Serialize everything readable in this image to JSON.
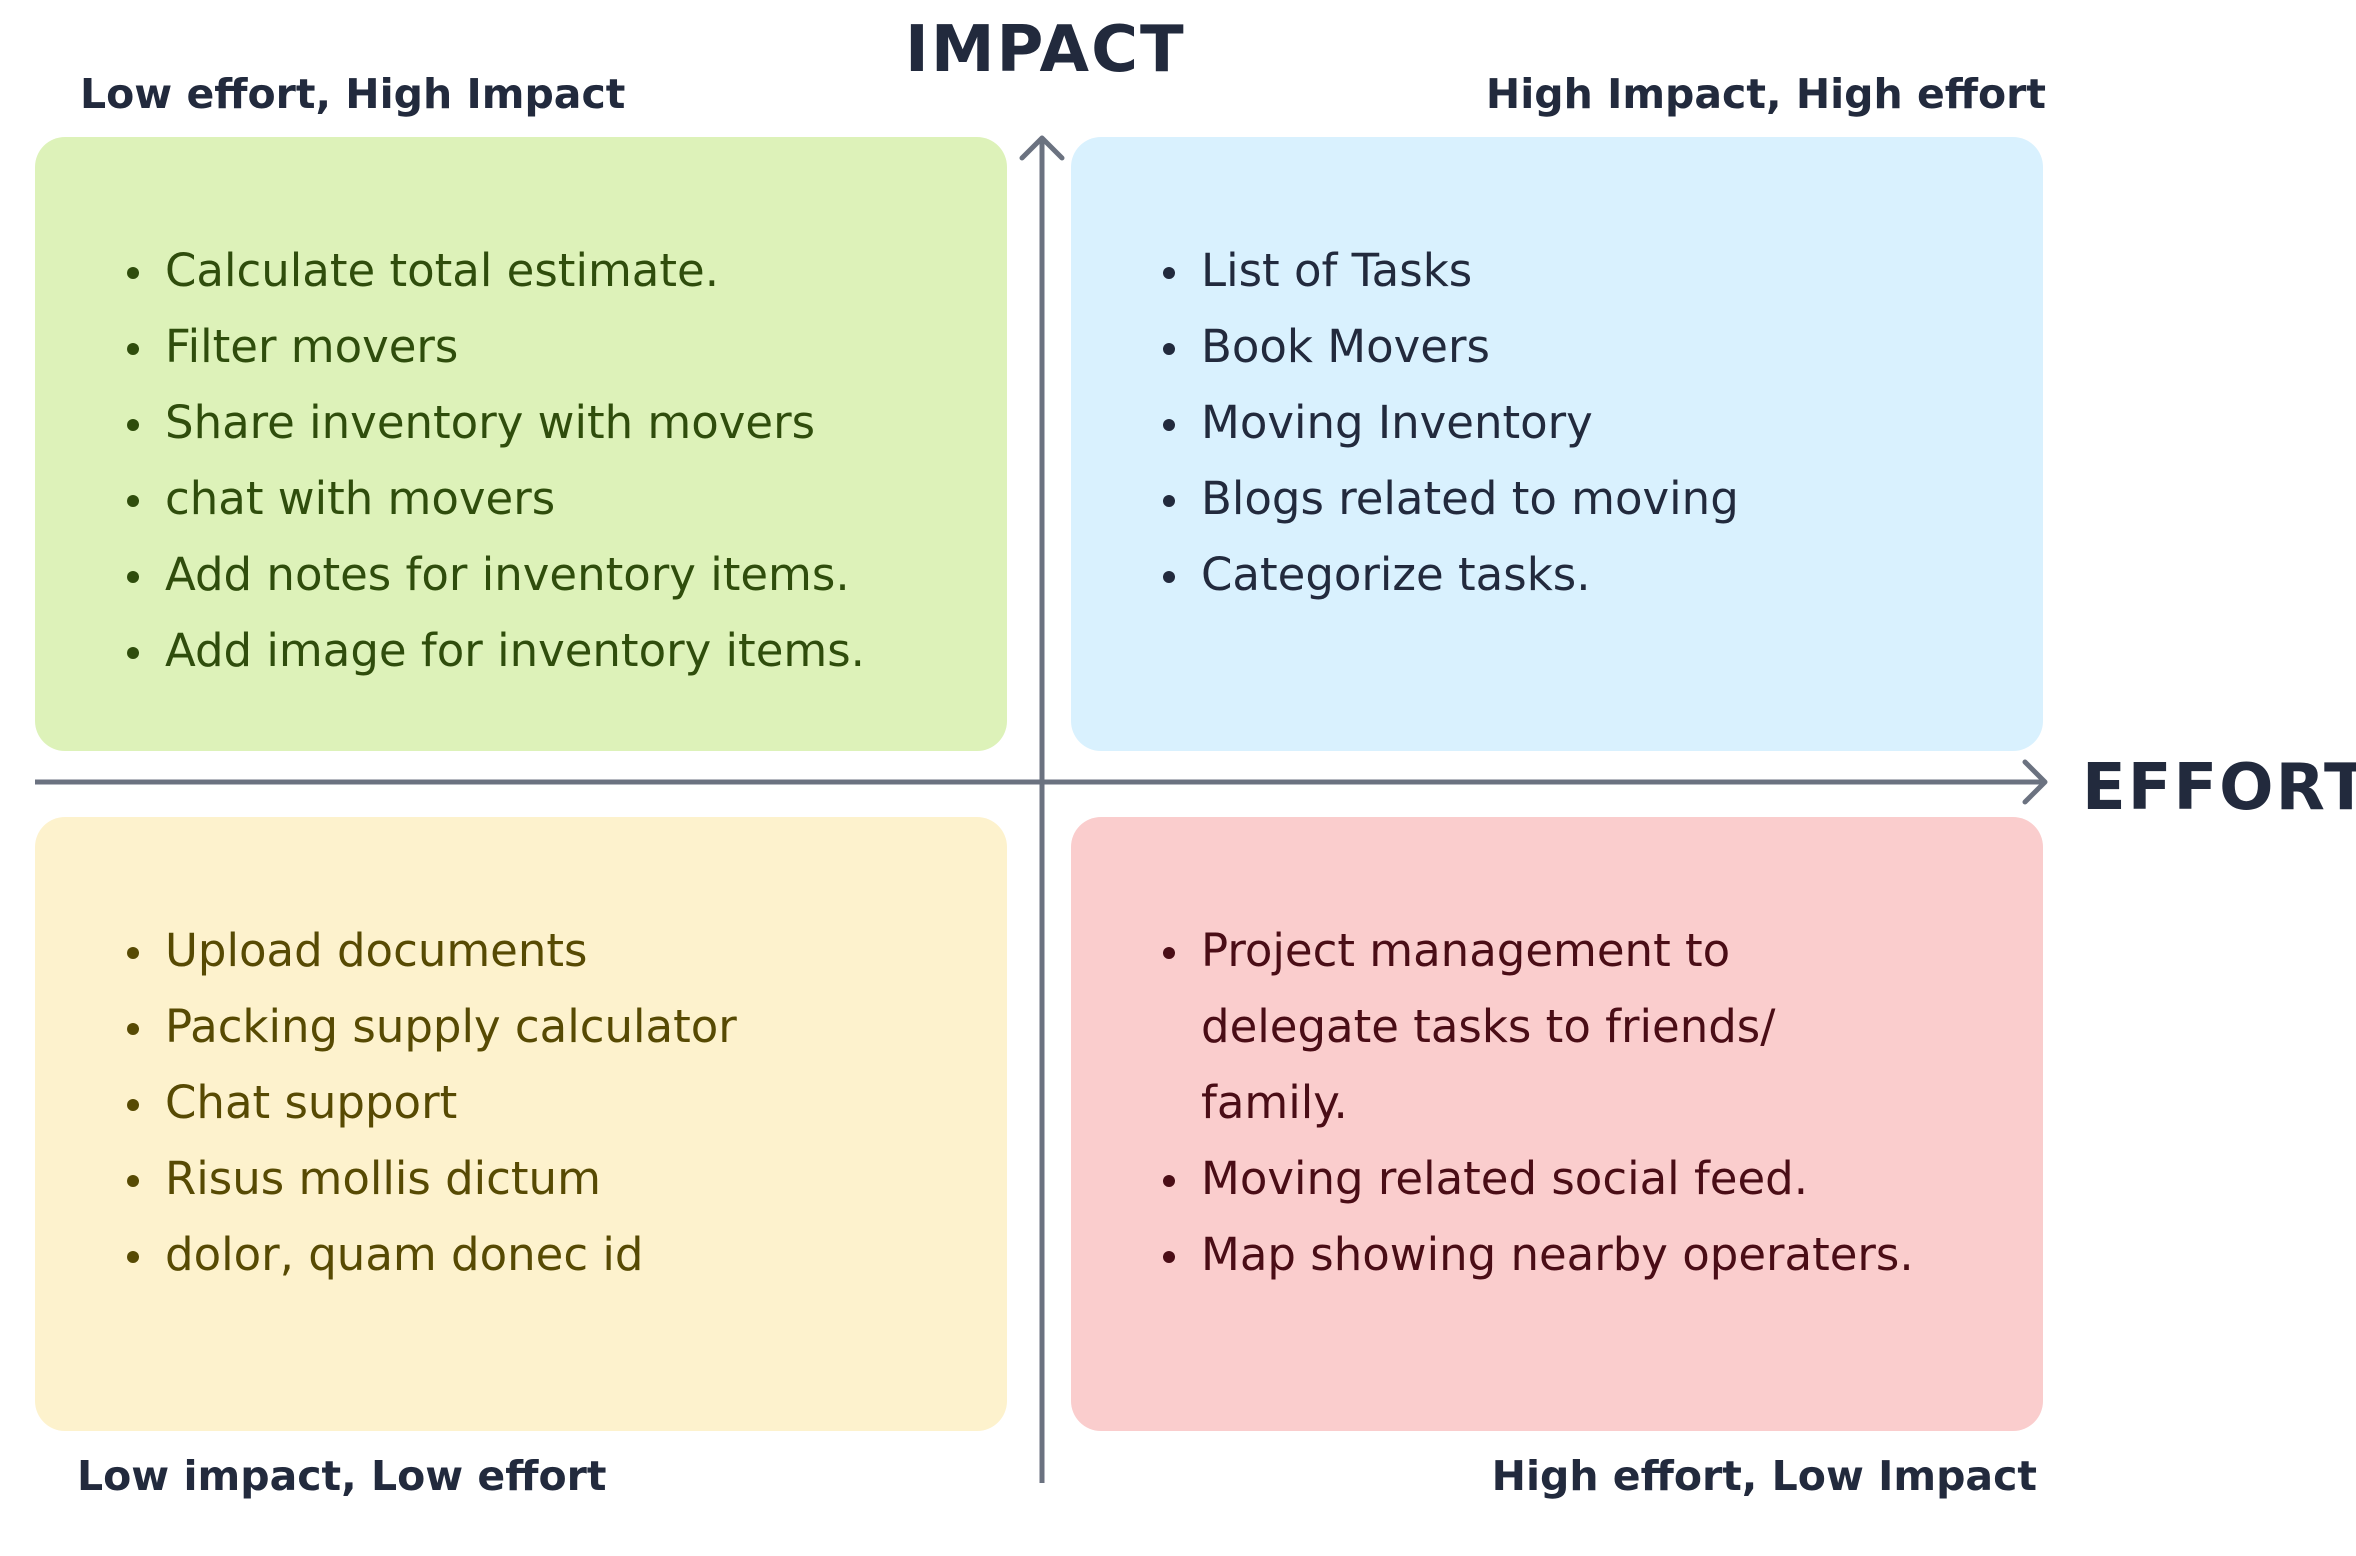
{
  "axes": {
    "y_title": "IMPACT",
    "x_title": "EFFORT",
    "color": "#6b7280"
  },
  "corners": {
    "top_left": "Low effort, High Impact",
    "top_right": "High Impact, High effort",
    "bottom_left": "Low impact, Low effort",
    "bottom_right": "High effort, Low Impact"
  },
  "quadrants": {
    "top_left": {
      "color": "#ddf2b9",
      "items": [
        "Calculate total estimate.",
        "Filter movers",
        "Share inventory with movers",
        "chat with movers",
        "Add notes for inventory items.",
        "Add image for inventory items."
      ]
    },
    "top_right": {
      "color": "#d9f1fe",
      "items": [
        "List of Tasks",
        "Book Movers",
        "Moving Inventory",
        "Blogs related to moving",
        "Categorize tasks."
      ]
    },
    "bottom_left": {
      "color": "#fdf2cd",
      "items": [
        "Upload documents",
        "Packing supply calculator",
        "Chat support",
        "Risus mollis dictum",
        "dolor, quam donec id"
      ]
    },
    "bottom_right": {
      "color": "#facdcd",
      "items": [
        "Project management to delegate tasks to friends/ family.",
        "Moving related social feed.",
        "Map showing nearby operaters."
      ]
    }
  }
}
